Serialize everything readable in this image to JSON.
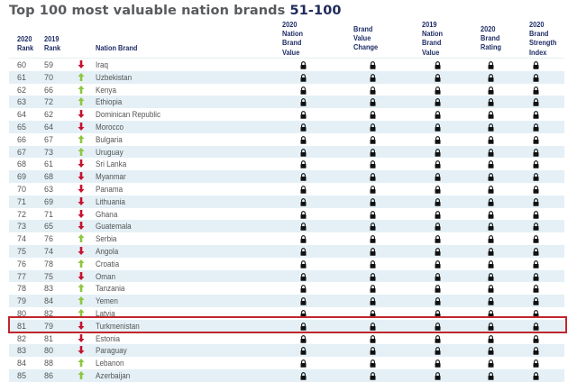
{
  "title": {
    "main": "Top 100 most valuable nation brands ",
    "range": "51-100"
  },
  "colors": {
    "header_text": "#1f2d66",
    "row_stripe": "#e4f0f6",
    "arrow_up": "#8dc63f",
    "arrow_down": "#c8102e",
    "highlight_border": "#c0262d"
  },
  "columns": {
    "rank_2020": "2020\nRank",
    "rank_2019": "2019\nRank",
    "nation_brand": "Nation Brand",
    "value_2020": "2020\nNation\nBrand\nValue",
    "value_change": "Brand\nValue\nChange",
    "value_2019": "2019\nNation\nBrand\nValue",
    "rating_2020": "2020\nBrand\nRating",
    "strength_2020": "2020\nBrand\nStrength\nIndex"
  },
  "locked_cell_icon": "lock-icon",
  "highlighted_rank": 81,
  "rows": [
    {
      "rank_2020": "60",
      "rank_2019": "59",
      "trend": "down",
      "name": "Iraq"
    },
    {
      "rank_2020": "61",
      "rank_2019": "70",
      "trend": "up",
      "name": "Uzbekistan"
    },
    {
      "rank_2020": "62",
      "rank_2019": "66",
      "trend": "up",
      "name": "Kenya"
    },
    {
      "rank_2020": "63",
      "rank_2019": "72",
      "trend": "up",
      "name": "Ethiopia"
    },
    {
      "rank_2020": "64",
      "rank_2019": "62",
      "trend": "down",
      "name": "Dominican Republic"
    },
    {
      "rank_2020": "65",
      "rank_2019": "64",
      "trend": "down",
      "name": "Morocco"
    },
    {
      "rank_2020": "66",
      "rank_2019": "67",
      "trend": "up",
      "name": "Bulgaria"
    },
    {
      "rank_2020": "67",
      "rank_2019": "73",
      "trend": "up",
      "name": "Uruguay"
    },
    {
      "rank_2020": "68",
      "rank_2019": "61",
      "trend": "down",
      "name": "Sri Lanka"
    },
    {
      "rank_2020": "69",
      "rank_2019": "68",
      "trend": "down",
      "name": "Myanmar"
    },
    {
      "rank_2020": "70",
      "rank_2019": "63",
      "trend": "down",
      "name": "Panama"
    },
    {
      "rank_2020": "71",
      "rank_2019": "69",
      "trend": "down",
      "name": "Lithuania"
    },
    {
      "rank_2020": "72",
      "rank_2019": "71",
      "trend": "down",
      "name": "Ghana"
    },
    {
      "rank_2020": "73",
      "rank_2019": "65",
      "trend": "down",
      "name": "Guatemala"
    },
    {
      "rank_2020": "74",
      "rank_2019": "76",
      "trend": "up",
      "name": "Serbia"
    },
    {
      "rank_2020": "75",
      "rank_2019": "74",
      "trend": "down",
      "name": "Angola"
    },
    {
      "rank_2020": "76",
      "rank_2019": "78",
      "trend": "up",
      "name": "Croatia"
    },
    {
      "rank_2020": "77",
      "rank_2019": "75",
      "trend": "down",
      "name": "Oman"
    },
    {
      "rank_2020": "78",
      "rank_2019": "83",
      "trend": "up",
      "name": "Tanzania"
    },
    {
      "rank_2020": "79",
      "rank_2019": "84",
      "trend": "up",
      "name": "Yemen"
    },
    {
      "rank_2020": "80",
      "rank_2019": "82",
      "trend": "up",
      "name": "Latvia"
    },
    {
      "rank_2020": "81",
      "rank_2019": "79",
      "trend": "down",
      "name": "Turkmenistan"
    },
    {
      "rank_2020": "82",
      "rank_2019": "81",
      "trend": "down",
      "name": "Estonia"
    },
    {
      "rank_2020": "83",
      "rank_2019": "80",
      "trend": "down",
      "name": "Paraguay"
    },
    {
      "rank_2020": "84",
      "rank_2019": "88",
      "trend": "up",
      "name": "Lebanon"
    },
    {
      "rank_2020": "85",
      "rank_2019": "86",
      "trend": "up",
      "name": "Azerbaijan"
    }
  ]
}
